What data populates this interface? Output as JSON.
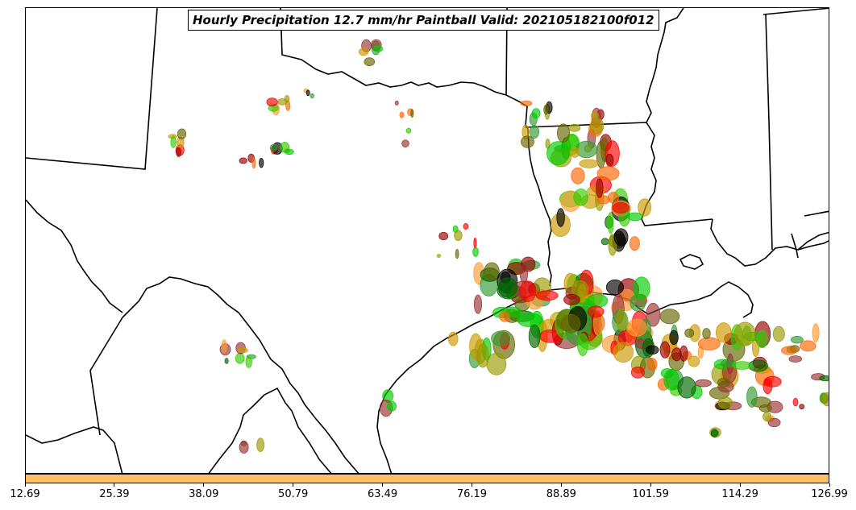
{
  "title": "Hourly Precipitation 12.7 mm/hr Paintball Valid: 202105182100f012",
  "colorbar": {
    "color": "#ffc062",
    "ticks": [
      "12.69",
      "25.39",
      "38.09",
      "50.79",
      "63.49",
      "76.19",
      "88.89",
      "101.59",
      "114.29",
      "126.99"
    ]
  },
  "colors": {
    "member_palette": [
      "#ff0000",
      "#ff6600",
      "#ff9933",
      "#cc9900",
      "#999900",
      "#666600",
      "#33cc00",
      "#00cc00",
      "#339933",
      "#006600",
      "#993333",
      "#990000",
      "#000000"
    ],
    "boundaries": "#000000"
  }
}
